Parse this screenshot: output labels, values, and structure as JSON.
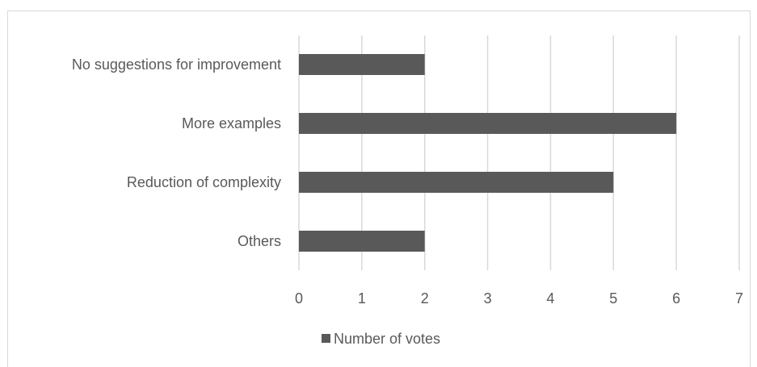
{
  "chart_data": {
    "type": "bar",
    "orientation": "horizontal",
    "categories": [
      "No suggestions for improvement",
      "More examples",
      "Reduction of complexity",
      "Others"
    ],
    "series": [
      {
        "name": "Number of votes",
        "values": [
          2,
          6,
          5,
          2
        ],
        "color": "#595959"
      }
    ],
    "xlim": [
      0,
      7
    ],
    "x_ticks": [
      "0",
      "1",
      "2",
      "3",
      "4",
      "5",
      "6",
      "7"
    ],
    "grid": "vertical",
    "grid_color": "#d9d9d9",
    "legend_position": "bottom"
  }
}
